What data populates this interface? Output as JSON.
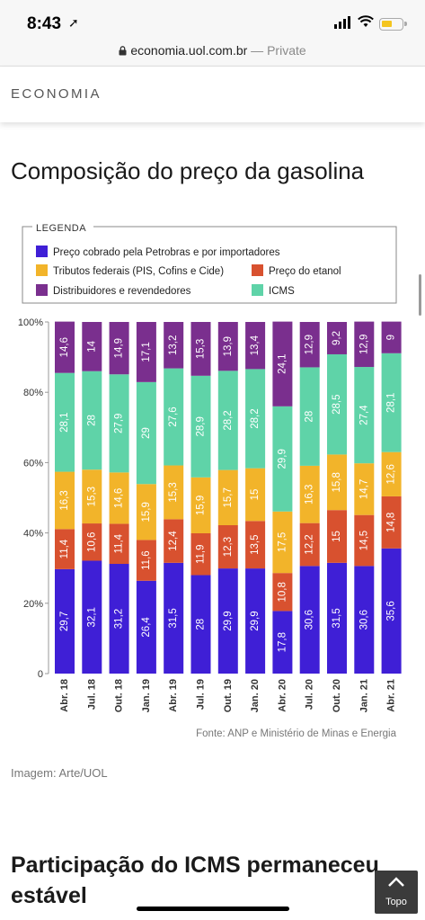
{
  "status_bar": {
    "time": "8:43"
  },
  "browser": {
    "domain": "economia.uol.com.br",
    "separator": " — ",
    "mode": "Private"
  },
  "header": {
    "section": "ECONOMIA"
  },
  "article": {
    "title": "Composição do preço da gasolina",
    "image_credit": "Imagem: Arte/UOL",
    "next_heading": "Participação do ICMS permaneceu estável"
  },
  "back_to_top": {
    "label": "Topo"
  },
  "chart_data": {
    "type": "bar",
    "stacked": true,
    "legend_title": "LEGENDA",
    "legend_placement": "top",
    "categories": [
      "Abr. 18",
      "Jul. 18",
      "Out. 18",
      "Jan. 19",
      "Abr. 19",
      "Jul. 19",
      "Out. 19",
      "Jan. 20",
      "Abr. 20",
      "Jul. 20",
      "Out. 20",
      "Jan. 21",
      "Abr. 21"
    ],
    "series": [
      {
        "name": "Preço cobrado pela Petrobras e por importadores",
        "color": "#3f1fd6",
        "values": [
          29.7,
          32.1,
          31.2,
          26.4,
          31.5,
          28,
          29.9,
          29.9,
          17.8,
          30.6,
          31.5,
          30.6,
          35.6
        ],
        "labels": [
          "29,7",
          "32,1",
          "31,2",
          "26,4",
          "31,5",
          "28",
          "29,9",
          "29,9",
          "17,8",
          "30,6",
          "31,5",
          "30,6",
          "35,6"
        ]
      },
      {
        "name": "Preço do etanol",
        "color": "#d8512f",
        "values": [
          11.4,
          10.6,
          11.4,
          11.6,
          12.4,
          11.9,
          12.3,
          13.5,
          10.8,
          12.2,
          15,
          14.5,
          14.8
        ],
        "labels": [
          "11,4",
          "10,6",
          "11,4",
          "11,6",
          "12,4",
          "11,9",
          "12,3",
          "13,5",
          "10,8",
          "12,2",
          "15",
          "14,5",
          "14,8"
        ]
      },
      {
        "name": "Tributos federais (PIS, Cofins e Cide)",
        "color": "#f2b42a",
        "values": [
          16.3,
          15.3,
          14.6,
          15.9,
          15.3,
          15.9,
          15.7,
          15,
          17.5,
          16.3,
          15.8,
          14.7,
          12.6
        ],
        "labels": [
          "16,3",
          "15,3",
          "14,6",
          "15,9",
          "15,3",
          "15,9",
          "15,7",
          "15",
          "17,5",
          "16,3",
          "15,8",
          "14,7",
          "12,6"
        ]
      },
      {
        "name": "ICMS",
        "color": "#5fd3a8",
        "values": [
          28.1,
          28,
          27.9,
          29,
          27.6,
          28.9,
          28.2,
          28.2,
          29.9,
          28,
          28.5,
          27.4,
          28.1
        ],
        "labels": [
          "28,1",
          "28",
          "27,9",
          "29",
          "27,6",
          "28,9",
          "28,2",
          "28,2",
          "29,9",
          "28",
          "28,5",
          "27,4",
          "28,1"
        ]
      },
      {
        "name": "Distribuidores e revendedores",
        "color": "#7a2f8e",
        "values": [
          14.6,
          14,
          14.9,
          17.1,
          13.2,
          15.3,
          13.9,
          13.4,
          24.1,
          12.9,
          9.2,
          12.9,
          9
        ],
        "labels": [
          "14,6",
          "14",
          "14,9",
          "17,1",
          "13,2",
          "15,3",
          "13,9",
          "13,4",
          "24,1",
          "12,9",
          "9,2",
          "12,9",
          "9"
        ]
      }
    ],
    "legend_order": [
      "Preço cobrado pela Petrobras e por importadores",
      "Tributos federais (PIS, Cofins e Cide)",
      "Preço do etanol",
      "Distribuidores e revendedores",
      "ICMS"
    ],
    "ylim": [
      0,
      100
    ],
    "yticks": [
      0,
      20,
      40,
      60,
      80,
      100
    ],
    "ytick_labels": [
      "0",
      "20%",
      "40%",
      "60%",
      "80%",
      "100%"
    ],
    "grid": false,
    "source": "Fonte: ANP e Ministério de Minas e Energia"
  }
}
